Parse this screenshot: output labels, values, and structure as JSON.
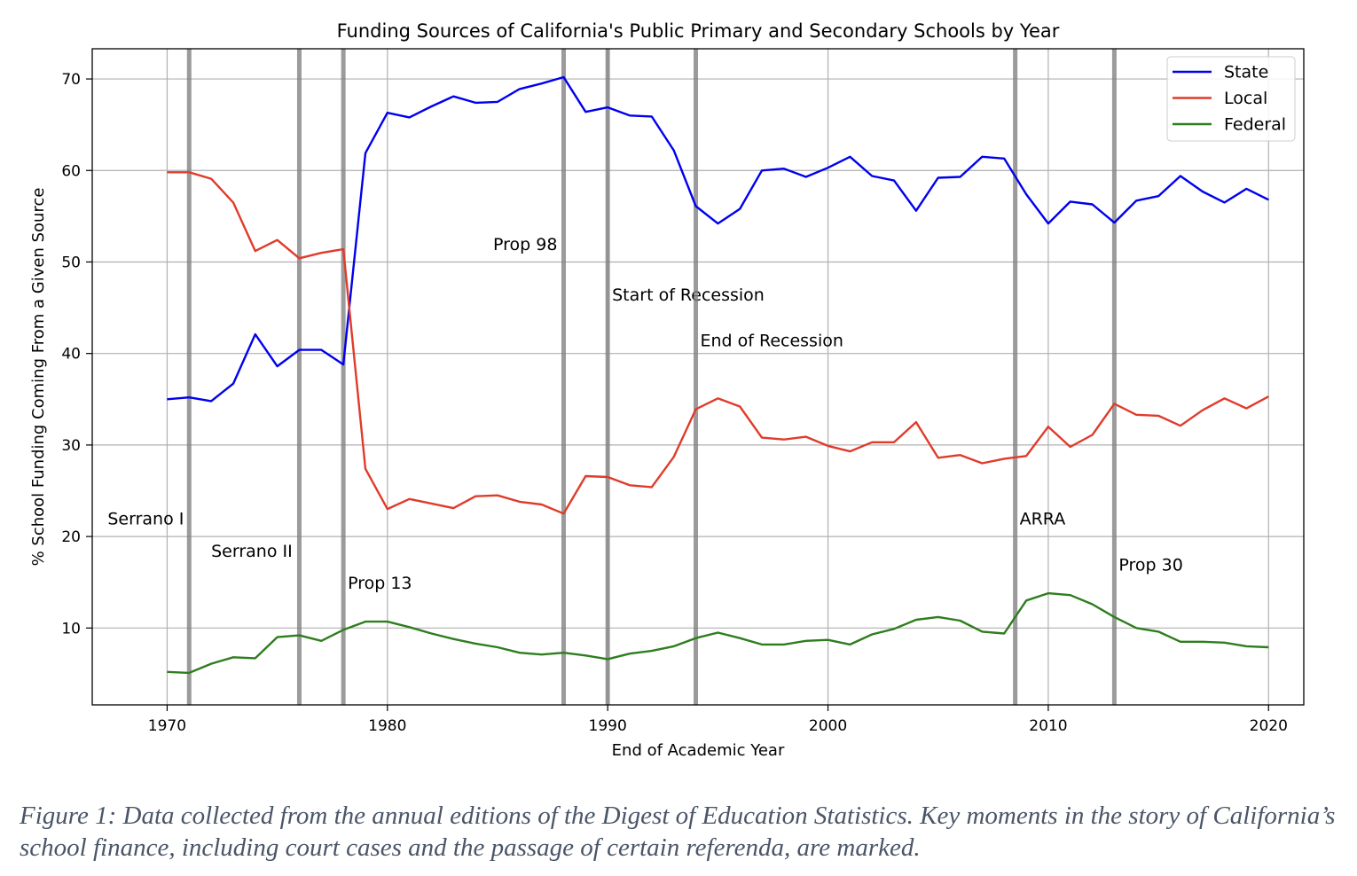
{
  "chart_data": {
    "type": "line",
    "title": "Funding Sources of California's Public Primary and Secondary Schools by Year",
    "xlabel": "End of Academic Year",
    "ylabel": "% School Funding Coming From a Given Source",
    "xlim": [
      1966.6,
      2021.6
    ],
    "ylim": [
      1.6,
      73.3
    ],
    "xticks": [
      1970,
      1980,
      1990,
      2000,
      2010,
      2020
    ],
    "yticks": [
      10,
      20,
      30,
      40,
      50,
      60,
      70
    ],
    "grid": true,
    "legend_position": "top-right",
    "x": [
      1970,
      1971,
      1972,
      1973,
      1974,
      1975,
      1976,
      1977,
      1978,
      1979,
      1980,
      1981,
      1982,
      1983,
      1984,
      1985,
      1986,
      1987,
      1988,
      1989,
      1990,
      1991,
      1992,
      1993,
      1994,
      1995,
      1996,
      1997,
      1998,
      1999,
      2000,
      2001,
      2002,
      2003,
      2004,
      2005,
      2006,
      2007,
      2008,
      2009,
      2010,
      2011,
      2012,
      2013,
      2014,
      2015,
      2016,
      2017,
      2018,
      2019,
      2020
    ],
    "series": [
      {
        "name": "State",
        "color": "#0000ee",
        "values": [
          35.0,
          35.2,
          34.8,
          36.7,
          42.1,
          38.6,
          40.4,
          40.4,
          38.8,
          61.9,
          66.3,
          65.8,
          67.0,
          68.1,
          67.4,
          67.5,
          68.9,
          69.5,
          70.2,
          66.4,
          66.9,
          66.0,
          65.9,
          62.2,
          56.1,
          54.2,
          55.8,
          60.0,
          60.2,
          59.3,
          60.3,
          61.5,
          59.4,
          58.9,
          55.6,
          59.2,
          59.3,
          61.5,
          61.3,
          57.4,
          54.2,
          56.6,
          56.3,
          54.3,
          56.7,
          57.2,
          59.4,
          57.7,
          56.5,
          58.0,
          56.8
        ]
      },
      {
        "name": "Local",
        "color": "#e03b2a",
        "values": [
          59.8,
          59.8,
          59.1,
          56.5,
          51.2,
          52.4,
          50.4,
          51.0,
          51.4,
          27.4,
          23.0,
          24.1,
          23.6,
          23.1,
          24.4,
          24.5,
          23.8,
          23.5,
          22.5,
          26.6,
          26.5,
          25.6,
          25.4,
          28.7,
          33.9,
          35.1,
          34.2,
          30.8,
          30.6,
          30.9,
          29.9,
          29.3,
          30.3,
          30.3,
          32.5,
          28.6,
          28.9,
          28.0,
          28.5,
          28.8,
          32.0,
          29.8,
          31.1,
          34.5,
          33.3,
          33.2,
          32.1,
          33.8,
          35.1,
          34.0,
          35.3
        ]
      },
      {
        "name": "Federal",
        "color": "#2e7d1e",
        "values": [
          5.2,
          5.1,
          6.1,
          6.8,
          6.7,
          9.0,
          9.2,
          8.6,
          9.8,
          10.7,
          10.7,
          10.1,
          9.4,
          8.8,
          8.3,
          7.9,
          7.3,
          7.1,
          7.3,
          7.0,
          6.6,
          7.2,
          7.5,
          8.0,
          8.9,
          9.5,
          8.9,
          8.2,
          8.2,
          8.6,
          8.7,
          8.2,
          9.3,
          9.9,
          10.9,
          11.2,
          10.8,
          9.6,
          9.4,
          13.0,
          13.8,
          13.6,
          12.6,
          11.2,
          10.0,
          9.6,
          8.5,
          8.5,
          8.4,
          8.0,
          7.9
        ]
      }
    ],
    "events": [
      {
        "x": 1971,
        "label": "Serrano I",
        "label_x": 1967.3,
        "label_y": 21.3
      },
      {
        "x": 1976,
        "label": "Serrano II",
        "label_x": 1972.0,
        "label_y": 17.8
      },
      {
        "x": 1978,
        "label": "Prop 13",
        "label_x": 1978.2,
        "label_y": 14.3
      },
      {
        "x": 1988,
        "label": "Prop 98",
        "label_x": 1984.8,
        "label_y": 51.3
      },
      {
        "x": 1990,
        "label": "Start of Recession",
        "label_x": 1990.2,
        "label_y": 45.8
      },
      {
        "x": 1994,
        "label": "End of Recession",
        "label_x": 1994.2,
        "label_y": 40.8
      },
      {
        "x": 2008.5,
        "label": "ARRA",
        "label_x": 2008.7,
        "label_y": 21.3
      },
      {
        "x": 2013,
        "label": "Prop 30",
        "label_x": 2013.2,
        "label_y": 16.3
      }
    ]
  },
  "caption": "Figure 1: Data collected from the annual editions of the Digest of Education Statistics. Key moments in the story of California’s school finance, including court cases and the passage of certain referenda, are marked."
}
